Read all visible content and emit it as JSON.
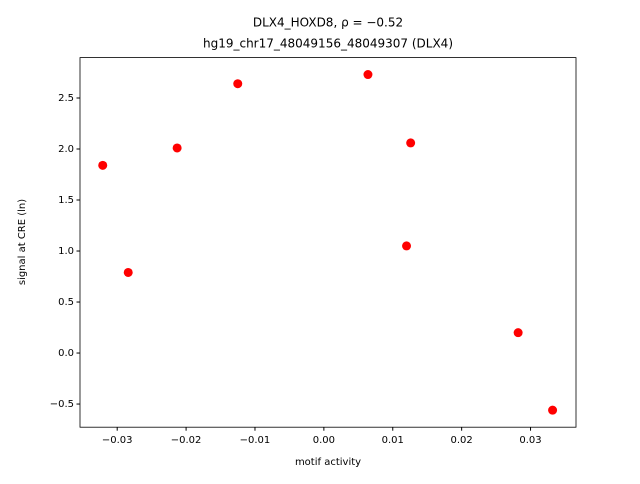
{
  "chart_data": {
    "type": "scatter",
    "title": [
      "DLX4_HOXD8, ρ = −0.52",
      "hg19_chr17_48049156_48049307 (DLX4)"
    ],
    "xlabel": "motif activity",
    "ylabel": "signal at CRE (ln)",
    "color": "#ff0000",
    "x": [
      -0.0321,
      -0.0284,
      -0.0213,
      -0.0125,
      0.0064,
      0.0126,
      0.012,
      0.0282,
      0.0332
    ],
    "values": [
      1.84,
      0.79,
      2.01,
      2.64,
      2.73,
      2.06,
      1.05,
      0.2,
      -0.56
    ],
    "xlim": [
      -0.0354,
      0.0366
    ],
    "ylim": [
      -0.727,
      2.896
    ],
    "xticks": [
      {
        "value": -0.03,
        "label": "−0.03"
      },
      {
        "value": -0.02,
        "label": "−0.02"
      },
      {
        "value": -0.01,
        "label": "−0.01"
      },
      {
        "value": 0,
        "label": "0.00"
      },
      0.01,
      0.02,
      0.03
    ],
    "yticks": [
      {
        "value": -0.5,
        "label": "−0.5"
      },
      {
        "value": 0,
        "label": "0.0"
      },
      0.5,
      {
        "value": 1,
        "label": "1.0"
      },
      1.5,
      {
        "value": 2,
        "label": "2.0"
      },
      2.5
    ]
  }
}
